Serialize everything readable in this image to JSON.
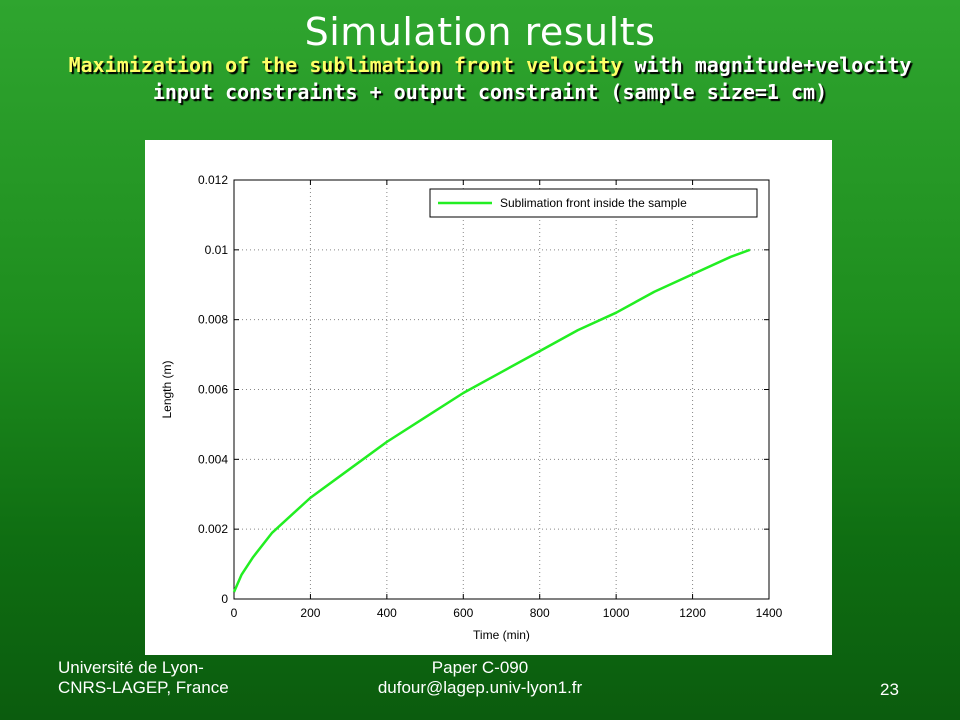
{
  "slide": {
    "title": "Simulation results",
    "subtitle_highlight": "Maximization of the sublimation front velocity",
    "subtitle_rest": " with magnitude+velocity input constraints + output constraint (sample size=1 cm)",
    "footer_left_line1": "Université de Lyon-",
    "footer_left_line2": "CNRS-LAGEP, France",
    "footer_center_line1": "Paper C-090",
    "footer_center_line2": "dufour@lagep.univ-lyon1.fr",
    "page_number": "23"
  },
  "colors": {
    "series": "#22ee22",
    "highlight": "#ffff66",
    "grid": "#888888"
  },
  "chart_data": {
    "type": "line",
    "title": "",
    "xlabel": "Time (min)",
    "ylabel": "Length (m)",
    "xlim": [
      0,
      1400
    ],
    "ylim": [
      0,
      0.012
    ],
    "x_ticks": [
      "0",
      "200",
      "400",
      "600",
      "800",
      "1000",
      "1200",
      "1400"
    ],
    "y_ticks": [
      "0",
      "0.002",
      "0.004",
      "0.006",
      "0.008",
      "0.01",
      "0.012"
    ],
    "grid": true,
    "legend_position": "top-right",
    "series": [
      {
        "name": "Sublimation front inside the sample",
        "x": [
          0,
          20,
          50,
          100,
          150,
          200,
          300,
          400,
          500,
          600,
          700,
          800,
          900,
          1000,
          1100,
          1200,
          1300,
          1350
        ],
        "y": [
          0.0002,
          0.0007,
          0.0012,
          0.0019,
          0.0024,
          0.0029,
          0.0037,
          0.0045,
          0.0052,
          0.0059,
          0.0065,
          0.0071,
          0.0077,
          0.0082,
          0.0088,
          0.0093,
          0.0098,
          0.01
        ]
      }
    ]
  }
}
